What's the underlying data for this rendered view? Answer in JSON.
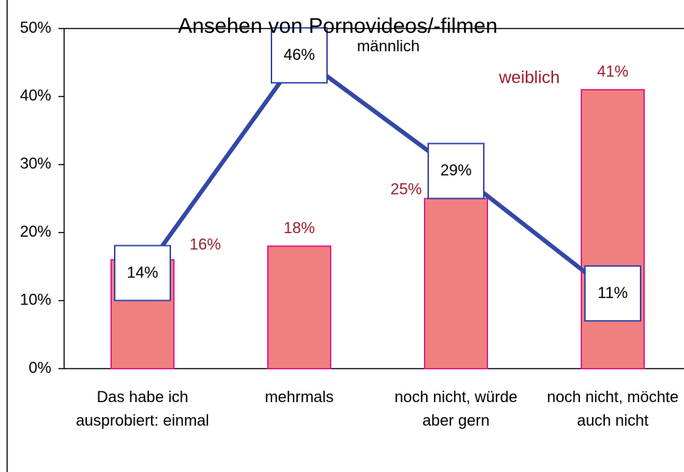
{
  "chart_data": {
    "type": "bar",
    "title": "Ansehen von Pornovideos/-filmen",
    "categories": [
      "Das habe ich ausprobiert: einmal",
      "mehrmals",
      "noch nicht, würde aber gern",
      "noch nicht, möchte auch nicht"
    ],
    "series": [
      {
        "name": "weiblich",
        "type": "bar",
        "color": "#f08080",
        "values": [
          16,
          18,
          25,
          41
        ],
        "value_labels": [
          "16%",
          "18%",
          "25%",
          "41%"
        ]
      },
      {
        "name": "männlich",
        "type": "line",
        "color": "#3347a8",
        "values": [
          14,
          46,
          29,
          11
        ],
        "value_labels": [
          "14%",
          "46%",
          "29%",
          "11%"
        ]
      }
    ],
    "ylim": [
      0,
      50
    ],
    "yticks": [
      {
        "value": 0,
        "label": "0%"
      },
      {
        "value": 10,
        "label": "10%"
      },
      {
        "value": 20,
        "label": "20%"
      },
      {
        "value": 30,
        "label": "30%"
      },
      {
        "value": 40,
        "label": "40%"
      },
      {
        "value": 50,
        "label": "50%"
      }
    ]
  }
}
